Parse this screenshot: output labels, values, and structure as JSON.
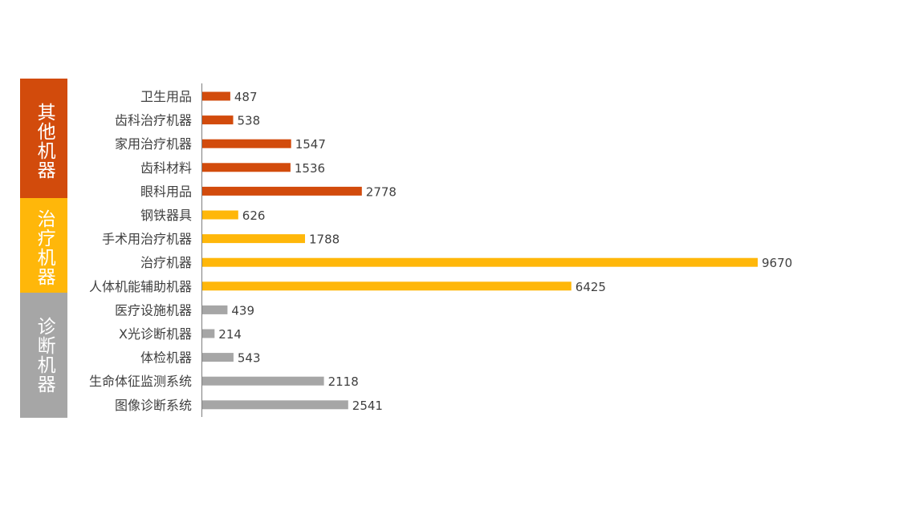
{
  "chart_data": {
    "type": "bar",
    "orientation": "horizontal",
    "title": "",
    "xlabel": "",
    "ylabel": "",
    "xlim": [
      0,
      9670
    ],
    "grid": false,
    "legend": "none",
    "groups": [
      {
        "name": "其他机器",
        "color": "#d24b0c",
        "items": [
          {
            "category": "卫生用品",
            "value": 487
          },
          {
            "category": "齿科治疗机器",
            "value": 538
          },
          {
            "category": "家用治疗机器",
            "value": 1547
          },
          {
            "category": "齿科材料",
            "value": 1536
          },
          {
            "category": "眼科用品",
            "value": 2778
          }
        ]
      },
      {
        "name": "治疗机器",
        "color": "#ffb70a",
        "items": [
          {
            "category": "钢铁器具",
            "value": 626
          },
          {
            "category": "手术用治疗机器",
            "value": 1788
          },
          {
            "category": "治疗机器",
            "value": 9670
          },
          {
            "category": "人体机能辅助机器",
            "value": 6425
          }
        ]
      },
      {
        "name": "诊断机器",
        "color": "#a6a6a6",
        "items": [
          {
            "category": "医疗设施机器",
            "value": 439
          },
          {
            "category": "X光诊断机器",
            "value": 214
          },
          {
            "category": "体检机器",
            "value": 543
          },
          {
            "category": "生命体征监测系统",
            "value": 2118
          },
          {
            "category": "图像诊断系统",
            "value": 2541
          }
        ]
      }
    ]
  }
}
